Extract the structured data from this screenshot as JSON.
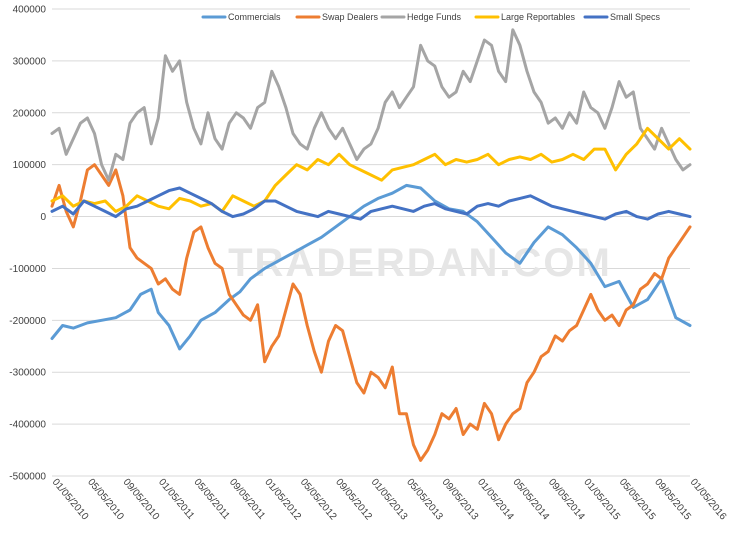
{
  "chart_data": {
    "type": "line",
    "title": "",
    "watermark": "TRADERDAN.COM",
    "ylim": [
      -500000,
      400000
    ],
    "y_ticks": [
      400000,
      300000,
      200000,
      100000,
      0,
      -100000,
      -200000,
      -300000,
      -400000,
      -500000
    ],
    "y_tick_labels": [
      "400000",
      "300000",
      "200000",
      "100000",
      "0",
      "-100000",
      "-200000",
      "-300000",
      "-400000",
      "-500000"
    ],
    "x_tick_labels": [
      "01/05/2010",
      "05/05/2010",
      "09/05/2010",
      "01/05/2011",
      "05/05/2011",
      "09/05/2011",
      "01/05/2012",
      "05/05/2012",
      "09/05/2012",
      "01/05/2013",
      "05/05/2013",
      "09/05/2013",
      "01/05/2014",
      "05/05/2014",
      "09/05/2014",
      "01/05/2015",
      "05/05/2015",
      "09/05/2015",
      "01/05/2016"
    ],
    "x_range": [
      0,
      18
    ],
    "legend_position": "top",
    "series": [
      {
        "name": "Commercials",
        "color": "#5b9bd5",
        "x": [
          0,
          0.3,
          0.6,
          1.0,
          1.4,
          1.8,
          2.2,
          2.5,
          2.8,
          3.0,
          3.3,
          3.6,
          3.9,
          4.2,
          4.6,
          5.0,
          5.3,
          5.6,
          6.0,
          6.4,
          6.8,
          7.2,
          7.6,
          8.0,
          8.4,
          8.8,
          9.2,
          9.6,
          10.0,
          10.4,
          10.8,
          11.2,
          11.6,
          12.0,
          12.4,
          12.8,
          13.2,
          13.6,
          14.0,
          14.4,
          14.8,
          15.2,
          15.6,
          16.0,
          16.4,
          16.8,
          17.2,
          17.6,
          18.0
        ],
        "values": [
          -235000,
          -210000,
          -215000,
          -205000,
          -200000,
          -195000,
          -180000,
          -150000,
          -140000,
          -185000,
          -210000,
          -255000,
          -230000,
          -200000,
          -185000,
          -160000,
          -145000,
          -120000,
          -100000,
          -85000,
          -70000,
          -55000,
          -40000,
          -20000,
          0,
          20000,
          35000,
          45000,
          60000,
          55000,
          30000,
          15000,
          10000,
          -10000,
          -40000,
          -70000,
          -90000,
          -50000,
          -20000,
          -35000,
          -60000,
          -90000,
          -135000,
          -125000,
          -175000,
          -160000,
          -120000,
          -195000,
          -210000
        ]
      },
      {
        "name": "Swap Dealers",
        "color": "#ed7d31",
        "x": [
          0,
          0.2,
          0.4,
          0.6,
          0.8,
          1.0,
          1.2,
          1.4,
          1.6,
          1.8,
          2.0,
          2.2,
          2.4,
          2.6,
          2.8,
          3.0,
          3.2,
          3.4,
          3.6,
          3.8,
          4.0,
          4.2,
          4.4,
          4.6,
          4.8,
          5.0,
          5.2,
          5.4,
          5.6,
          5.8,
          6.0,
          6.2,
          6.4,
          6.6,
          6.8,
          7.0,
          7.2,
          7.4,
          7.6,
          7.8,
          8.0,
          8.2,
          8.4,
          8.6,
          8.8,
          9.0,
          9.2,
          9.4,
          9.6,
          9.8,
          10.0,
          10.2,
          10.4,
          10.6,
          10.8,
          11.0,
          11.2,
          11.4,
          11.6,
          11.8,
          12.0,
          12.2,
          12.4,
          12.6,
          12.8,
          13.0,
          13.2,
          13.4,
          13.6,
          13.8,
          14.0,
          14.2,
          14.4,
          14.6,
          14.8,
          15.0,
          15.2,
          15.4,
          15.6,
          15.8,
          16.0,
          16.2,
          16.4,
          16.6,
          16.8,
          17.0,
          17.2,
          17.4,
          17.6,
          17.8,
          18.0
        ],
        "values": [
          20000,
          60000,
          10000,
          -20000,
          30000,
          90000,
          100000,
          80000,
          60000,
          90000,
          40000,
          -60000,
          -80000,
          -90000,
          -100000,
          -130000,
          -120000,
          -140000,
          -150000,
          -80000,
          -30000,
          -20000,
          -60000,
          -90000,
          -100000,
          -150000,
          -170000,
          -190000,
          -200000,
          -170000,
          -280000,
          -250000,
          -230000,
          -180000,
          -130000,
          -150000,
          -210000,
          -260000,
          -300000,
          -240000,
          -210000,
          -220000,
          -270000,
          -320000,
          -340000,
          -300000,
          -310000,
          -330000,
          -290000,
          -380000,
          -380000,
          -440000,
          -470000,
          -450000,
          -420000,
          -380000,
          -390000,
          -370000,
          -420000,
          -400000,
          -410000,
          -360000,
          -380000,
          -430000,
          -400000,
          -380000,
          -370000,
          -320000,
          -300000,
          -270000,
          -260000,
          -230000,
          -240000,
          -220000,
          -210000,
          -180000,
          -150000,
          -180000,
          -200000,
          -190000,
          -210000,
          -180000,
          -170000,
          -140000,
          -130000,
          -110000,
          -120000,
          -80000,
          -60000,
          -40000,
          -20000
        ]
      },
      {
        "name": "Hedge Funds",
        "color": "#a5a5a5",
        "x": [
          0,
          0.2,
          0.4,
          0.6,
          0.8,
          1.0,
          1.2,
          1.4,
          1.6,
          1.8,
          2.0,
          2.2,
          2.4,
          2.6,
          2.8,
          3.0,
          3.2,
          3.4,
          3.6,
          3.8,
          4.0,
          4.2,
          4.4,
          4.6,
          4.8,
          5.0,
          5.2,
          5.4,
          5.6,
          5.8,
          6.0,
          6.2,
          6.4,
          6.6,
          6.8,
          7.0,
          7.2,
          7.4,
          7.6,
          7.8,
          8.0,
          8.2,
          8.4,
          8.6,
          8.8,
          9.0,
          9.2,
          9.4,
          9.6,
          9.8,
          10.0,
          10.2,
          10.4,
          10.6,
          10.8,
          11.0,
          11.2,
          11.4,
          11.6,
          11.8,
          12.0,
          12.2,
          12.4,
          12.6,
          12.8,
          13.0,
          13.2,
          13.4,
          13.6,
          13.8,
          14.0,
          14.2,
          14.4,
          14.6,
          14.8,
          15.0,
          15.2,
          15.4,
          15.6,
          15.8,
          16.0,
          16.2,
          16.4,
          16.6,
          16.8,
          17.0,
          17.2,
          17.4,
          17.6,
          17.8,
          18.0
        ],
        "values": [
          160000,
          170000,
          120000,
          150000,
          180000,
          190000,
          160000,
          100000,
          70000,
          120000,
          110000,
          180000,
          200000,
          210000,
          140000,
          190000,
          310000,
          280000,
          300000,
          220000,
          170000,
          140000,
          200000,
          150000,
          130000,
          180000,
          200000,
          190000,
          170000,
          210000,
          220000,
          280000,
          250000,
          210000,
          160000,
          140000,
          130000,
          170000,
          200000,
          170000,
          150000,
          170000,
          140000,
          110000,
          130000,
          140000,
          170000,
          220000,
          240000,
          210000,
          230000,
          250000,
          330000,
          300000,
          290000,
          250000,
          230000,
          240000,
          280000,
          260000,
          300000,
          340000,
          330000,
          280000,
          260000,
          360000,
          330000,
          280000,
          240000,
          220000,
          180000,
          190000,
          170000,
          200000,
          180000,
          240000,
          210000,
          200000,
          170000,
          210000,
          260000,
          230000,
          240000,
          170000,
          150000,
          130000,
          170000,
          140000,
          110000,
          90000,
          100000
        ]
      },
      {
        "name": "Large Reportables",
        "color": "#ffc000",
        "x": [
          0,
          0.3,
          0.6,
          0.9,
          1.2,
          1.5,
          1.8,
          2.1,
          2.4,
          2.7,
          3.0,
          3.3,
          3.6,
          3.9,
          4.2,
          4.5,
          4.8,
          5.1,
          5.4,
          5.7,
          6.0,
          6.3,
          6.6,
          6.9,
          7.2,
          7.5,
          7.8,
          8.1,
          8.4,
          8.7,
          9.0,
          9.3,
          9.6,
          9.9,
          10.2,
          10.5,
          10.8,
          11.1,
          11.4,
          11.7,
          12.0,
          12.3,
          12.6,
          12.9,
          13.2,
          13.5,
          13.8,
          14.1,
          14.4,
          14.7,
          15.0,
          15.3,
          15.6,
          15.9,
          16.2,
          16.5,
          16.8,
          17.1,
          17.4,
          17.7,
          18.0
        ],
        "values": [
          30000,
          40000,
          20000,
          30000,
          25000,
          30000,
          10000,
          20000,
          40000,
          30000,
          20000,
          15000,
          35000,
          30000,
          20000,
          25000,
          10000,
          40000,
          30000,
          20000,
          30000,
          60000,
          80000,
          100000,
          90000,
          110000,
          100000,
          120000,
          100000,
          90000,
          80000,
          70000,
          90000,
          95000,
          100000,
          110000,
          120000,
          100000,
          110000,
          105000,
          110000,
          120000,
          100000,
          110000,
          115000,
          110000,
          120000,
          105000,
          110000,
          120000,
          110000,
          130000,
          130000,
          90000,
          120000,
          140000,
          170000,
          150000,
          130000,
          150000,
          130000
        ]
      },
      {
        "name": "Small Specs",
        "color": "#4472c4",
        "x": [
          0,
          0.3,
          0.6,
          0.9,
          1.2,
          1.5,
          1.8,
          2.1,
          2.4,
          2.7,
          3.0,
          3.3,
          3.6,
          3.9,
          4.2,
          4.5,
          4.8,
          5.1,
          5.4,
          5.7,
          6.0,
          6.3,
          6.6,
          6.9,
          7.2,
          7.5,
          7.8,
          8.1,
          8.4,
          8.7,
          9.0,
          9.3,
          9.6,
          9.9,
          10.2,
          10.5,
          10.8,
          11.1,
          11.4,
          11.7,
          12.0,
          12.3,
          12.6,
          12.9,
          13.2,
          13.5,
          13.8,
          14.1,
          14.4,
          14.7,
          15.0,
          15.3,
          15.6,
          15.9,
          16.2,
          16.5,
          16.8,
          17.1,
          17.4,
          17.7,
          18.0
        ],
        "values": [
          10000,
          20000,
          5000,
          30000,
          20000,
          10000,
          0,
          15000,
          20000,
          30000,
          40000,
          50000,
          55000,
          45000,
          35000,
          25000,
          10000,
          0,
          5000,
          15000,
          30000,
          30000,
          20000,
          10000,
          5000,
          0,
          10000,
          5000,
          0,
          -5000,
          10000,
          15000,
          20000,
          15000,
          10000,
          20000,
          25000,
          15000,
          10000,
          5000,
          20000,
          25000,
          20000,
          30000,
          35000,
          40000,
          30000,
          20000,
          15000,
          10000,
          5000,
          0,
          -5000,
          5000,
          10000,
          0,
          -5000,
          5000,
          10000,
          5000,
          0
        ]
      }
    ]
  }
}
